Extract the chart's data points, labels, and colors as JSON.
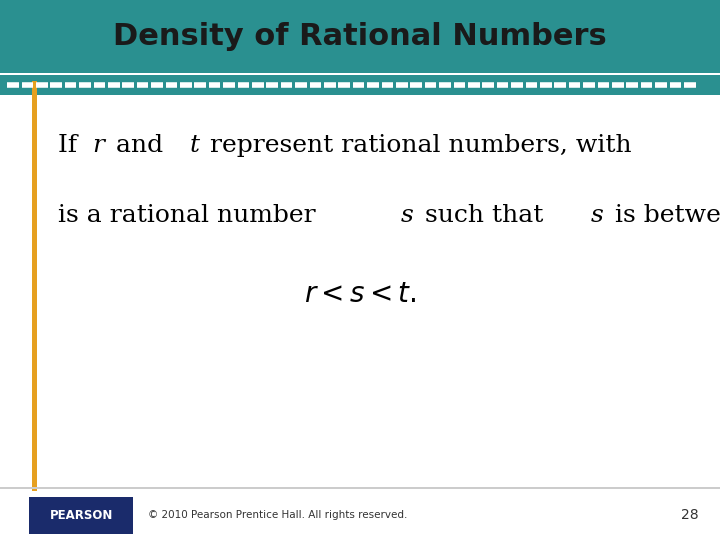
{
  "title": "Density of Rational Numbers",
  "title_bg_color": "#2a9090",
  "title_text_color": "#1a1a1a",
  "title_fontsize": 22,
  "body_bg_color": "#ffffff",
  "accent_line_color": "#e6a020",
  "footer_text": "© 2010 Pearson Prentice Hall. All rights reserved.",
  "page_number": "28",
  "pearson_bg": "#1a2b6b",
  "pearson_text": "PEARSON",
  "body_fontsize": 18,
  "formula_fontsize": 20
}
